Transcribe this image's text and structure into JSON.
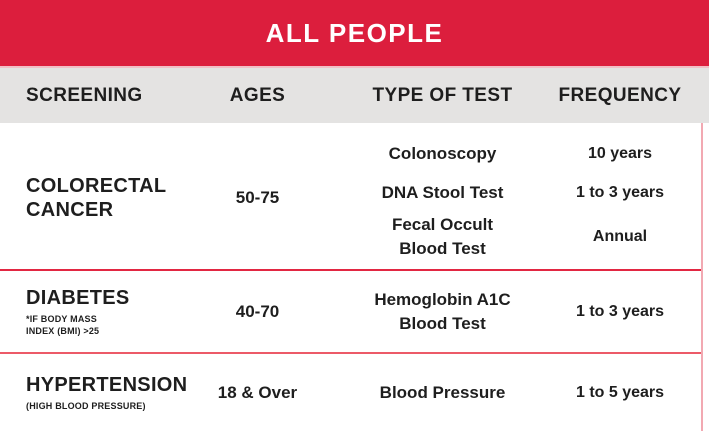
{
  "banner": {
    "title": "ALL PEOPLE"
  },
  "header": {
    "columns": [
      "SCREENING",
      "AGES",
      "TYPE OF TEST",
      "FREQUENCY"
    ]
  },
  "rows": {
    "colorectal": {
      "screening": "COLORECTAL\nCANCER",
      "ages": "50-75",
      "tests": [
        {
          "name": "Colonoscopy",
          "frequency": "10 years"
        },
        {
          "name": "DNA Stool Test",
          "frequency": "1 to 3 years"
        },
        {
          "name": "Fecal Occult\nBlood Test",
          "frequency": "Annual"
        }
      ]
    },
    "diabetes": {
      "screening": "DIABETES",
      "note": "*IF BODY MASS\nINDEX (BMI) >25",
      "ages": "40-70",
      "test": "Hemoglobin A1C\nBlood Test",
      "frequency": "1 to 3 years"
    },
    "hypertension": {
      "screening": "HYPERTENSION",
      "note": "(HIGH BLOOD PRESSURE)",
      "ages": "18 & Over",
      "test": "Blood Pressure",
      "frequency": "1 to 5 years"
    }
  },
  "colors": {
    "banner_red": "#DC1E3D",
    "header_gray": "#E4E3E2",
    "divider_red": "#E22742",
    "divider_pink": "#EC5A68",
    "right_border_pink": "#F2A9B2",
    "text": "#1E1E1E",
    "banner_text": "#FFFFFF"
  }
}
